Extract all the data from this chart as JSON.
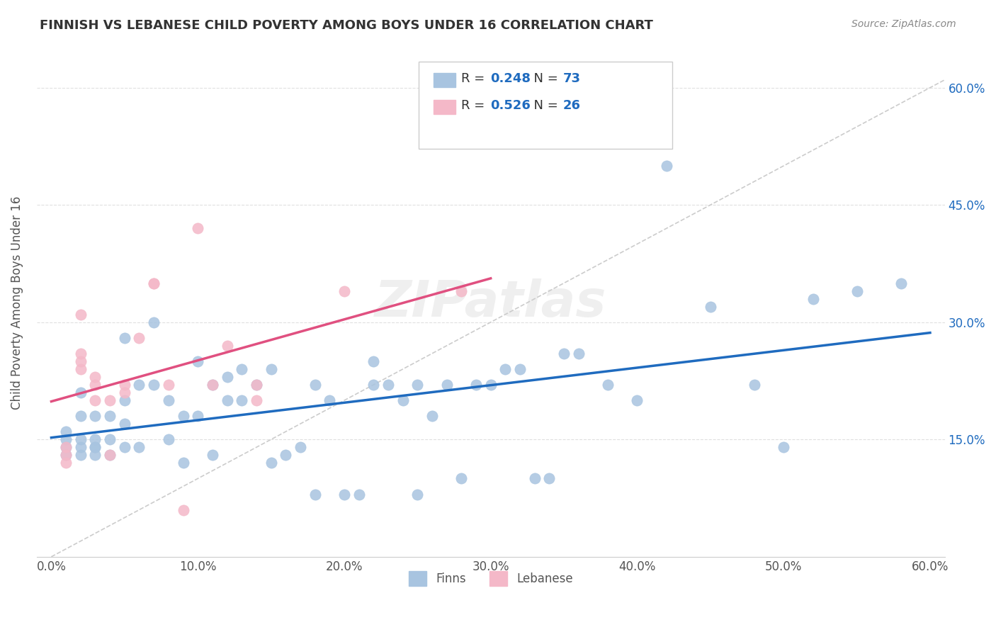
{
  "title": "FINNISH VS LEBANESE CHILD POVERTY AMONG BOYS UNDER 16 CORRELATION CHART",
  "source": "Source: ZipAtlas.com",
  "xlim": [
    0.0,
    0.6
  ],
  "ylim": [
    0.0,
    0.65
  ],
  "ylabel": "Child Poverty Among Boys Under 16",
  "legend_label1": "Finns",
  "legend_label2": "Lebanese",
  "r1": "0.248",
  "n1": "73",
  "r2": "0.526",
  "n2": "26",
  "color_finns": "#a8c4e0",
  "color_lebanese": "#f4b8c8",
  "color_trendline_finns": "#1f6bbf",
  "color_trendline_lebanese": "#e05080",
  "color_diagonal": "#cccccc",
  "color_text": "#1f6bbf",
  "finns_x": [
    0.01,
    0.01,
    0.01,
    0.01,
    0.02,
    0.02,
    0.02,
    0.02,
    0.02,
    0.03,
    0.03,
    0.03,
    0.03,
    0.03,
    0.04,
    0.04,
    0.04,
    0.05,
    0.05,
    0.05,
    0.05,
    0.06,
    0.06,
    0.07,
    0.07,
    0.08,
    0.08,
    0.09,
    0.09,
    0.1,
    0.1,
    0.11,
    0.11,
    0.12,
    0.12,
    0.13,
    0.13,
    0.14,
    0.15,
    0.15,
    0.16,
    0.17,
    0.18,
    0.18,
    0.19,
    0.2,
    0.21,
    0.22,
    0.22,
    0.23,
    0.24,
    0.25,
    0.25,
    0.26,
    0.27,
    0.28,
    0.29,
    0.3,
    0.31,
    0.32,
    0.33,
    0.34,
    0.35,
    0.36,
    0.38,
    0.4,
    0.42,
    0.45,
    0.48,
    0.5,
    0.52,
    0.55,
    0.58
  ],
  "finns_y": [
    0.14,
    0.13,
    0.15,
    0.16,
    0.13,
    0.14,
    0.15,
    0.18,
    0.21,
    0.14,
    0.13,
    0.14,
    0.15,
    0.18,
    0.13,
    0.15,
    0.18,
    0.14,
    0.17,
    0.2,
    0.28,
    0.14,
    0.22,
    0.22,
    0.3,
    0.15,
    0.2,
    0.12,
    0.18,
    0.18,
    0.25,
    0.13,
    0.22,
    0.2,
    0.23,
    0.2,
    0.24,
    0.22,
    0.12,
    0.24,
    0.13,
    0.14,
    0.08,
    0.22,
    0.2,
    0.08,
    0.08,
    0.22,
    0.25,
    0.22,
    0.2,
    0.22,
    0.08,
    0.18,
    0.22,
    0.1,
    0.22,
    0.22,
    0.24,
    0.24,
    0.1,
    0.1,
    0.26,
    0.26,
    0.22,
    0.2,
    0.5,
    0.32,
    0.22,
    0.14,
    0.33,
    0.34,
    0.35
  ],
  "lebanese_x": [
    0.01,
    0.01,
    0.01,
    0.02,
    0.02,
    0.02,
    0.02,
    0.03,
    0.03,
    0.03,
    0.04,
    0.04,
    0.05,
    0.05,
    0.06,
    0.07,
    0.07,
    0.08,
    0.09,
    0.1,
    0.11,
    0.12,
    0.14,
    0.14,
    0.2,
    0.28
  ],
  "lebanese_y": [
    0.14,
    0.13,
    0.12,
    0.24,
    0.25,
    0.26,
    0.31,
    0.2,
    0.22,
    0.23,
    0.2,
    0.13,
    0.22,
    0.21,
    0.28,
    0.35,
    0.35,
    0.22,
    0.06,
    0.42,
    0.22,
    0.27,
    0.2,
    0.22,
    0.34,
    0.34
  ],
  "background_color": "#ffffff",
  "grid_color": "#e0e0e0",
  "x_tick_vals": [
    0.0,
    0.1,
    0.2,
    0.3,
    0.4,
    0.5,
    0.6
  ],
  "y_tick_vals": [
    0.15,
    0.3,
    0.45,
    0.6
  ]
}
